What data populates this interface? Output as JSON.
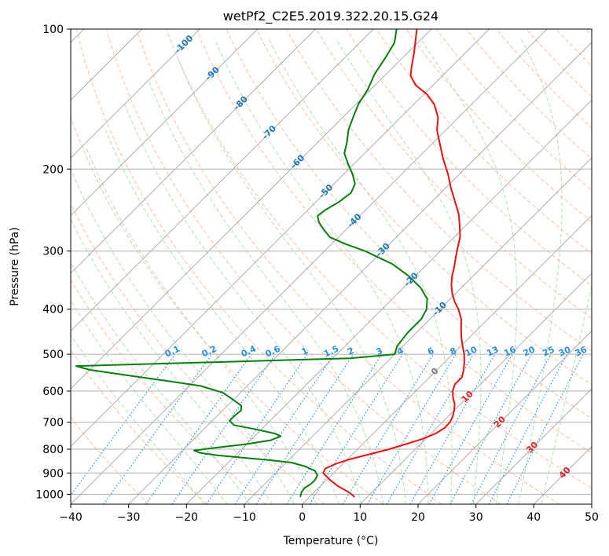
{
  "chart_data": {
    "type": "line",
    "title": "wetPf2_C2E5.2019.322.20.15.G24",
    "xlabel": "Temperature (°C)",
    "ylabel": "Pressure (hPa)",
    "xlim": [
      -40,
      50
    ],
    "ylim": [
      1050,
      100
    ],
    "y_scale": "log",
    "skew": true,
    "grid": true,
    "x_ticks": [
      "−40",
      "−30",
      "−20",
      "−10",
      "0",
      "10",
      "20",
      "30",
      "40",
      "50"
    ],
    "x_tick_values": [
      -40,
      -30,
      -20,
      -10,
      0,
      10,
      20,
      30,
      40,
      50
    ],
    "y_ticks": [
      "100",
      "200",
      "300",
      "400",
      "500",
      "600",
      "700",
      "800",
      "900",
      "1000"
    ],
    "y_tick_values": [
      100,
      200,
      300,
      400,
      500,
      600,
      700,
      800,
      900,
      1000
    ],
    "colors": {
      "temperature": "#e8130f",
      "dewpoint": "#0a7d10",
      "isotherm": "#9a9a9a",
      "dry_adiabat": "#f7a889",
      "moist_adiabat": "#97cf97",
      "mixing_ratio": "#2c8ee0",
      "lcl_label_isotherm": "#1f77b4",
      "high_isotherm_labels": "#d62728",
      "zero_label": "#7a7a7a"
    },
    "isotherm_labels": [
      {
        "text": "-100",
        "t": -100
      },
      {
        "text": "-90",
        "t": -90
      },
      {
        "text": "-80",
        "t": -80
      },
      {
        "text": "-70",
        "t": -70
      },
      {
        "text": "-60",
        "t": -60
      },
      {
        "text": "-50",
        "t": -50
      },
      {
        "text": "-40",
        "t": -40
      },
      {
        "text": "-30",
        "t": -30
      },
      {
        "text": "-20",
        "t": -20
      },
      {
        "text": "-10",
        "t": -10
      }
    ],
    "warm_isotherm_labels": [
      {
        "text": "0",
        "t": 0,
        "color": "zero"
      },
      {
        "text": "10",
        "t": 10,
        "color": "warm"
      },
      {
        "text": "20",
        "t": 20,
        "color": "warm"
      },
      {
        "text": "30",
        "t": 30,
        "color": "warm"
      },
      {
        "text": "40",
        "t": 40,
        "color": "warm"
      }
    ],
    "mixing_ratio_labels": [
      "0.1",
      "0.2",
      "0.4",
      "0.6",
      "1",
      "1.5",
      "2",
      "3",
      "4",
      "6",
      "8",
      "10",
      "13",
      "16",
      "20",
      "25",
      "30",
      "36"
    ],
    "mixing_ratio_values": [
      0.1,
      0.2,
      0.4,
      0.6,
      1,
      1.5,
      2,
      3,
      4,
      6,
      8,
      10,
      13,
      16,
      20,
      25,
      30,
      36
    ],
    "series": [
      {
        "key": "temperature",
        "points": [
          [
            1013,
            7.8
          ],
          [
            990,
            6.0
          ],
          [
            960,
            3.0
          ],
          [
            930,
            0.5
          ],
          [
            900,
            -1.8
          ],
          [
            880,
            -2.2
          ],
          [
            860,
            -1.2
          ],
          [
            840,
            0.5
          ],
          [
            820,
            3.0
          ],
          [
            800,
            5.5
          ],
          [
            780,
            7.5
          ],
          [
            760,
            9.5
          ],
          [
            740,
            10.8
          ],
          [
            720,
            11.4
          ],
          [
            700,
            11.3
          ],
          [
            680,
            10.8
          ],
          [
            660,
            10.0
          ],
          [
            640,
            9.0
          ],
          [
            620,
            7.6
          ],
          [
            600,
            6.4
          ],
          [
            580,
            5.6
          ],
          [
            560,
            5.6
          ],
          [
            540,
            4.6
          ],
          [
            520,
            3.4
          ],
          [
            500,
            2.0
          ],
          [
            480,
            0.3
          ],
          [
            460,
            -1.4
          ],
          [
            440,
            -3.0
          ],
          [
            420,
            -4.6
          ],
          [
            400,
            -6.8
          ],
          [
            385,
            -8.8
          ],
          [
            370,
            -10.6
          ],
          [
            355,
            -12.2
          ],
          [
            340,
            -13.6
          ],
          [
            325,
            -14.8
          ],
          [
            310,
            -16.2
          ],
          [
            295,
            -17.6
          ],
          [
            280,
            -19.0
          ],
          [
            265,
            -21.0
          ],
          [
            250,
            -23.2
          ],
          [
            235,
            -26.0
          ],
          [
            220,
            -29.0
          ],
          [
            205,
            -32.0
          ],
          [
            190,
            -35.5
          ],
          [
            175,
            -39.0
          ],
          [
            165,
            -41.5
          ],
          [
            155,
            -43.5
          ],
          [
            145,
            -46.5
          ],
          [
            138,
            -49.5
          ],
          [
            132,
            -53.0
          ],
          [
            126,
            -55.5
          ],
          [
            120,
            -57.0
          ],
          [
            112,
            -59.0
          ],
          [
            105,
            -61.0
          ],
          [
            100,
            -62.5
          ]
        ]
      },
      {
        "key": "dewpoint",
        "points": [
          [
            1013,
            -1.6
          ],
          [
            990,
            -2.2
          ],
          [
            970,
            -2.4
          ],
          [
            950,
            -2.0
          ],
          [
            930,
            -2.0
          ],
          [
            910,
            -2.4
          ],
          [
            890,
            -3.6
          ],
          [
            870,
            -6.2
          ],
          [
            855,
            -9.0
          ],
          [
            845,
            -13.0
          ],
          [
            835,
            -18.0
          ],
          [
            825,
            -23.0
          ],
          [
            815,
            -26.5
          ],
          [
            805,
            -28.0
          ],
          [
            795,
            -25.0
          ],
          [
            780,
            -20.0
          ],
          [
            765,
            -16.5
          ],
          [
            750,
            -15.5
          ],
          [
            740,
            -17.0
          ],
          [
            725,
            -21.0
          ],
          [
            710,
            -25.5
          ],
          [
            695,
            -27.0
          ],
          [
            675,
            -27.0
          ],
          [
            660,
            -26.8
          ],
          [
            645,
            -27.6
          ],
          [
            625,
            -30.2
          ],
          [
            605,
            -33.0
          ],
          [
            585,
            -38.0
          ],
          [
            570,
            -45.0
          ],
          [
            560,
            -50.0
          ],
          [
            550,
            -55.0
          ],
          [
            540,
            -60.0
          ],
          [
            530,
            -63.0
          ],
          [
            520,
            -40.0
          ],
          [
            510,
            -17.0
          ],
          [
            500,
            -10.0
          ],
          [
            480,
            -11.0
          ],
          [
            450,
            -11.5
          ],
          [
            420,
            -11.5
          ],
          [
            400,
            -12.3
          ],
          [
            380,
            -14.0
          ],
          [
            360,
            -17.0
          ],
          [
            340,
            -21.0
          ],
          [
            320,
            -26.0
          ],
          [
            300,
            -33.0
          ],
          [
            290,
            -37.5
          ],
          [
            280,
            -41.5
          ],
          [
            270,
            -43.8
          ],
          [
            260,
            -46.0
          ],
          [
            252,
            -47.3
          ],
          [
            245,
            -47.0
          ],
          [
            235,
            -46.0
          ],
          [
            225,
            -45.5
          ],
          [
            215,
            -46.4
          ],
          [
            205,
            -48.5
          ],
          [
            195,
            -51.0
          ],
          [
            185,
            -53.5
          ],
          [
            175,
            -55.0
          ],
          [
            165,
            -56.8
          ],
          [
            155,
            -58.2
          ],
          [
            145,
            -59.6
          ],
          [
            135,
            -60.5
          ],
          [
            125,
            -62.0
          ],
          [
            115,
            -63.0
          ],
          [
            107,
            -64.0
          ],
          [
            100,
            -66.0
          ]
        ]
      }
    ]
  }
}
